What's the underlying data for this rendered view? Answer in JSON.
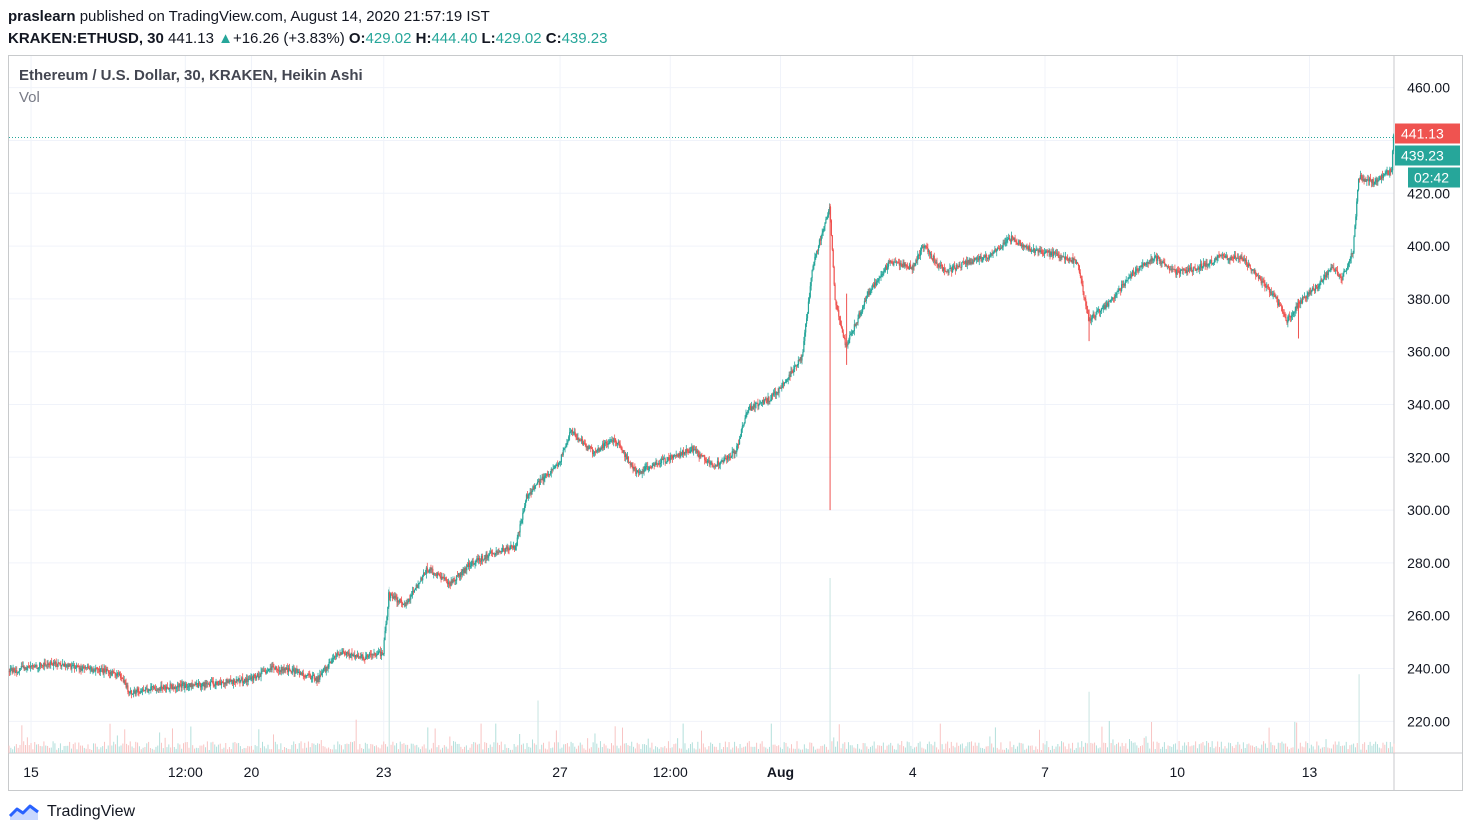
{
  "header": {
    "user": "praslearn",
    "published_text": "published on TradingView.com, August 14, 2020 21:57:19 IST",
    "symbol": "KRAKEN:ETHUSD, 30",
    "last": "441.13",
    "change_arrow": "▲",
    "change": "+16.26 (+3.83%)",
    "open_label": "O:",
    "open": "429.02",
    "high_label": "H:",
    "high": "444.40",
    "low_label": "L:",
    "low": "429.02",
    "close_label": "C:",
    "close": "439.23"
  },
  "legend": {
    "title": "Ethereum / U.S. Dollar, 30, KRAKEN, Heikin Ashi",
    "volume": "Vol"
  },
  "price_tags": {
    "last": "441.13",
    "close": "439.23",
    "countdown": "02:42"
  },
  "brand": {
    "name": "TradingView",
    "icon": "tradingview-logo-icon"
  },
  "colors": {
    "up": "#26a69a",
    "down": "#ef5350",
    "grid": "#f0f3fa",
    "axis_text": "#131722"
  },
  "chart_data": {
    "type": "candlestick",
    "style": "Heikin Ashi",
    "interval_minutes": 30,
    "ylim": [
      208,
      472
    ],
    "y_ticks": [
      220,
      240,
      260,
      280,
      300,
      320,
      340,
      360,
      380,
      400,
      420,
      440,
      460
    ],
    "y_tick_labels": [
      "220.00",
      "240.00",
      "260.00",
      "280.00",
      "300.00",
      "320.00",
      "340.00",
      "360.00",
      "380.00",
      "400.00",
      "420.00",
      "",
      "460.00"
    ],
    "x_start": "Jul 14 12:00",
    "x_tick_labels": [
      {
        "label": "15",
        "at": "Jul 15",
        "bold": false
      },
      {
        "label": "12:00",
        "at": "Jul 18 12:00",
        "bold": false
      },
      {
        "label": "20",
        "at": "Jul 20",
        "bold": false
      },
      {
        "label": "23",
        "at": "Jul 23",
        "bold": false
      },
      {
        "label": "27",
        "at": "Jul 27",
        "bold": false
      },
      {
        "label": "12:00",
        "at": "Jul 29 12:00",
        "bold": false
      },
      {
        "label": "Aug",
        "at": "Aug 1",
        "bold": true
      },
      {
        "label": "4",
        "at": "Aug 4",
        "bold": false
      },
      {
        "label": "7",
        "at": "Aug 7",
        "bold": false
      },
      {
        "label": "10",
        "at": "Aug 10",
        "bold": false
      },
      {
        "label": "13",
        "at": "Aug 13",
        "bold": false
      }
    ],
    "price_path": [
      [
        "Jul 14 12:00",
        239
      ],
      [
        "Jul 15 12:00",
        242
      ],
      [
        "Jul 17 00:00",
        238
      ],
      [
        "Jul 17 06:00",
        231
      ],
      [
        "Jul 18 00:00",
        233
      ],
      [
        "Jul 19 00:00",
        234
      ],
      [
        "Jul 20 00:00",
        236
      ],
      [
        "Jul 20 12:00",
        240
      ],
      [
        "Jul 21 00:00",
        239
      ],
      [
        "Jul 21 12:00",
        236
      ],
      [
        "Jul 22 00:00",
        246
      ],
      [
        "Jul 22 12:00",
        244
      ],
      [
        "Jul 23 00:00",
        246
      ],
      [
        "Jul 23 03:00",
        268
      ],
      [
        "Jul 23 12:00",
        264
      ],
      [
        "Jul 24 00:00",
        278
      ],
      [
        "Jul 24 12:00",
        272
      ],
      [
        "Jul 25 00:00",
        280
      ],
      [
        "Jul 25 12:00",
        284
      ],
      [
        "Jul 26 00:00",
        286
      ],
      [
        "Jul 26 06:00",
        305
      ],
      [
        "Jul 26 12:00",
        310
      ],
      [
        "Jul 27 00:00",
        318
      ],
      [
        "Jul 27 06:00",
        330
      ],
      [
        "Jul 27 18:00",
        322
      ],
      [
        "Jul 28 06:00",
        327
      ],
      [
        "Jul 28 18:00",
        314
      ],
      [
        "Jul 29 06:00",
        318
      ],
      [
        "Jul 30 00:00",
        323
      ],
      [
        "Jul 30 12:00",
        317
      ],
      [
        "Jul 31 00:00",
        322
      ],
      [
        "Jul 31 06:00",
        338
      ],
      [
        "Jul 31 18:00",
        342
      ],
      [
        "Aug 1 00:00",
        346
      ],
      [
        "Aug 1 12:00",
        358
      ],
      [
        "Aug 1 18:00",
        393
      ],
      [
        "Aug 2 03:00",
        415
      ],
      [
        "Aug 2 06:00",
        380
      ],
      [
        "Aug 2 12:00",
        362
      ],
      [
        "Aug 3 00:00",
        382
      ],
      [
        "Aug 3 12:00",
        394
      ],
      [
        "Aug 4 00:00",
        392
      ],
      [
        "Aug 4 06:00",
        400
      ],
      [
        "Aug 4 18:00",
        390
      ],
      [
        "Aug 5 06:00",
        394
      ],
      [
        "Aug 5 18:00",
        396
      ],
      [
        "Aug 6 06:00",
        403
      ],
      [
        "Aug 6 18:00",
        398
      ],
      [
        "Aug 7 06:00",
        397
      ],
      [
        "Aug 7 18:00",
        394
      ],
      [
        "Aug 8 00:00",
        372
      ],
      [
        "Aug 8 12:00",
        379
      ],
      [
        "Aug 9 00:00",
        390
      ],
      [
        "Aug 9 12:00",
        396
      ],
      [
        "Aug 10 00:00",
        390
      ],
      [
        "Aug 10 12:00",
        392
      ],
      [
        "Aug 11 00:00",
        396
      ],
      [
        "Aug 11 12:00",
        395
      ],
      [
        "Aug 11 18:00",
        390
      ],
      [
        "Aug 12 06:00",
        380
      ],
      [
        "Aug 12 12:00",
        372
      ],
      [
        "Aug 12 18:00",
        378
      ],
      [
        "Aug 13 06:00",
        386
      ],
      [
        "Aug 13 12:00",
        392
      ],
      [
        "Aug 13 18:00",
        388
      ],
      [
        "Aug 14 00:00",
        398
      ],
      [
        "Aug 14 03:00",
        426
      ],
      [
        "Aug 14 12:00",
        424
      ],
      [
        "Aug 14 21:00",
        429
      ],
      [
        "Aug 14 21:57",
        441
      ]
    ],
    "spikes": [
      {
        "time": "Aug 2 03:00",
        "high": 416,
        "low": 300
      },
      {
        "time": "Aug 8 00:00",
        "high": 376,
        "low": 364
      },
      {
        "time": "Aug 12 18:00",
        "high": 380,
        "low": 365
      },
      {
        "time": "Aug 2 12:00",
        "high": 382,
        "low": 355
      }
    ],
    "last_price": 441.13,
    "close_price": 439.23,
    "volume_spikes": [
      {
        "time": "Jul 23 03:00",
        "rel": 0.95
      },
      {
        "time": "Aug 2 03:00",
        "rel": 1.0
      },
      {
        "time": "Aug 14 03:00",
        "rel": 0.45
      },
      {
        "time": "Aug 8 00:00",
        "rel": 0.35
      },
      {
        "time": "Jul 26 12:00",
        "rel": 0.3
      }
    ]
  }
}
